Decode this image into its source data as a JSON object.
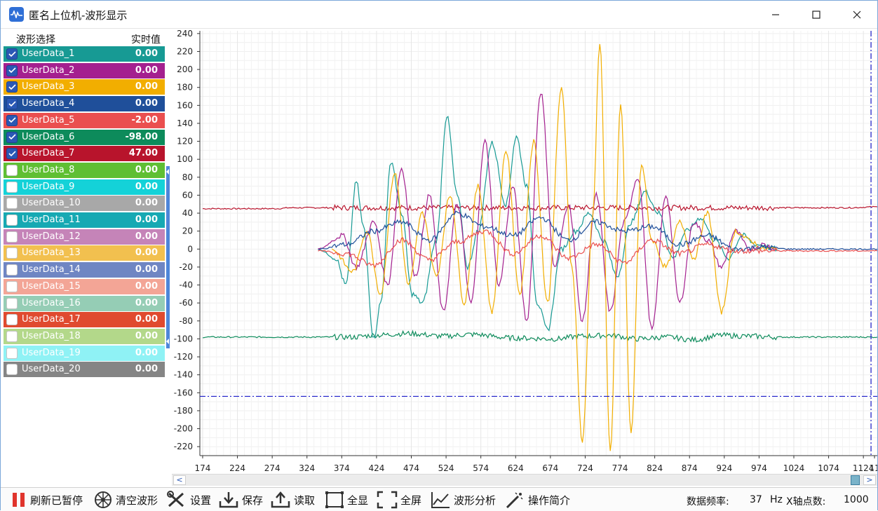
{
  "window": {
    "title": "匿名上位机-波形显示"
  },
  "panel": {
    "header_select": "波形选择",
    "header_value": "实时值",
    "channels": [
      {
        "name": "UserData_1",
        "value": "0.00",
        "checked": true,
        "color": "#179a94"
      },
      {
        "name": "UserData_2",
        "value": "0.00",
        "checked": true,
        "color": "#a4208f"
      },
      {
        "name": "UserData_3",
        "value": "0.00",
        "checked": true,
        "color": "#f2ae00"
      },
      {
        "name": "UserData_4",
        "value": "0.00",
        "checked": true,
        "color": "#1f4f9a"
      },
      {
        "name": "UserData_5",
        "value": "-2.00",
        "checked": true,
        "color": "#ea4f4f"
      },
      {
        "name": "UserData_6",
        "value": "-98.00",
        "checked": true,
        "color": "#0d8b5b"
      },
      {
        "name": "UserData_7",
        "value": "47.00",
        "checked": true,
        "color": "#b8142c"
      },
      {
        "name": "UserData_8",
        "value": "0.00",
        "checked": false,
        "color": "#5fbf33"
      },
      {
        "name": "UserData_9",
        "value": "0.00",
        "checked": false,
        "color": "#14d2d8"
      },
      {
        "name": "UserData_10",
        "value": "0.00",
        "checked": false,
        "color": "#a8a8a8"
      },
      {
        "name": "UserData_11",
        "value": "0.00",
        "checked": false,
        "color": "#16a9b3"
      },
      {
        "name": "UserData_12",
        "value": "0.00",
        "checked": false,
        "color": "#c584b8"
      },
      {
        "name": "UserData_13",
        "value": "0.00",
        "checked": false,
        "color": "#f2c04f"
      },
      {
        "name": "UserData_14",
        "value": "0.00",
        "checked": false,
        "color": "#6f86c3"
      },
      {
        "name": "UserData_15",
        "value": "0.00",
        "checked": false,
        "color": "#f3a596"
      },
      {
        "name": "UserData_16",
        "value": "0.00",
        "checked": false,
        "color": "#95cdb5"
      },
      {
        "name": "UserData_17",
        "value": "0.00",
        "checked": false,
        "color": "#e04a2f"
      },
      {
        "name": "UserData_18",
        "value": "0.00",
        "checked": false,
        "color": "#b3d88a"
      },
      {
        "name": "UserData_19",
        "value": "0.00",
        "checked": false,
        "color": "#8ff2f5"
      },
      {
        "name": "UserData_20",
        "value": "0.00",
        "checked": false,
        "color": "#858585"
      }
    ]
  },
  "toolbar": {
    "refresh_label": "刷新已暂停",
    "clear_label": "清空波形",
    "settings_label": "设置",
    "save_label": "保存",
    "load_label": "读取",
    "fit_label": "全显",
    "fullscreen_label": "全屏",
    "analysis_label": "波形分析",
    "help_label": "操作简介"
  },
  "status": {
    "freq_label": "数据频率:",
    "freq_value": "37",
    "freq_unit": "Hz",
    "xpoints_label": "X轴点数:",
    "xpoints_value": "1000"
  },
  "chart_data": {
    "type": "line",
    "x_ticks": [
      174,
      224,
      274,
      324,
      374,
      424,
      474,
      524,
      574,
      624,
      674,
      724,
      774,
      824,
      874,
      924,
      974,
      1024,
      1074,
      1124,
      "11"
    ],
    "y_ticks": [
      240,
      220,
      200,
      180,
      160,
      140,
      120,
      100,
      80,
      60,
      40,
      20,
      0,
      -20,
      -40,
      -60,
      -80,
      -100,
      -120,
      -140,
      -160,
      -180,
      -200,
      -220
    ],
    "xlim": [
      170,
      1144
    ],
    "ylim": [
      -230,
      243
    ],
    "grid": true,
    "cursor_x": 1135,
    "cursor_y": -164,
    "series": [
      {
        "color": "#b8142c",
        "start": 174,
        "end": 1144,
        "x": [
          174,
          280,
          300,
          1000,
          1100,
          1144
        ],
        "y": [
          45,
          45,
          46,
          46,
          46,
          47
        ]
      },
      {
        "color": "#0d8b5b",
        "start": 174,
        "end": 1144,
        "x": [
          174,
          390,
          420,
          470,
          520,
          560,
          620,
          680,
          720,
          760,
          800,
          840,
          880,
          920,
          960,
          1000,
          1060,
          1144
        ],
        "y": [
          -98,
          -98,
          -96,
          -94,
          -97,
          -95,
          -99,
          -100,
          -97,
          -96,
          -100,
          -98,
          -101,
          -96,
          -97,
          -98,
          -98,
          -98
        ]
      },
      {
        "color": "#179a94",
        "start": 340,
        "end": 1000,
        "x": [
          340,
          365,
          380,
          395,
          405,
          420,
          430,
          445,
          460,
          475,
          490,
          510,
          525,
          540,
          555,
          570,
          590,
          610,
          625,
          640,
          655,
          670,
          690,
          710,
          730,
          750,
          770,
          790,
          810,
          830,
          850,
          870,
          890,
          910,
          930,
          950,
          970,
          1000
        ],
        "y": [
          0,
          -10,
          -40,
          75,
          25,
          -100,
          -60,
          98,
          40,
          -50,
          -60,
          10,
          148,
          60,
          -20,
          20,
          118,
          50,
          125,
          70,
          -60,
          -90,
          0,
          20,
          40,
          10,
          -30,
          30,
          64,
          40,
          -10,
          20,
          35,
          10,
          -10,
          15,
          5,
          0
        ]
      },
      {
        "color": "#a4208f",
        "start": 340,
        "end": 1000,
        "x": [
          340,
          375,
          395,
          420,
          440,
          460,
          480,
          500,
          520,
          540,
          560,
          580,
          600,
          620,
          640,
          660,
          680,
          700,
          720,
          740,
          760,
          780,
          800,
          820,
          840,
          860,
          880,
          900,
          920,
          940,
          960,
          980,
          1000
        ],
        "y": [
          0,
          15,
          -20,
          30,
          -40,
          90,
          -30,
          60,
          -70,
          50,
          -60,
          120,
          -40,
          70,
          -80,
          175,
          -20,
          50,
          -80,
          60,
          -70,
          30,
          80,
          -90,
          60,
          -60,
          30,
          10,
          -20,
          20,
          0,
          5,
          0
        ]
      },
      {
        "color": "#f2ae00",
        "start": 360,
        "end": 1000,
        "x": [
          360,
          390,
          410,
          430,
          450,
          470,
          490,
          510,
          530,
          550,
          570,
          590,
          610,
          630,
          650,
          670,
          690,
          705,
          720,
          735,
          745,
          760,
          775,
          790,
          805,
          820,
          840,
          860,
          880,
          900,
          920,
          940,
          960,
          980,
          1000
        ],
        "y": [
          0,
          -25,
          20,
          -50,
          85,
          -40,
          40,
          -30,
          60,
          -60,
          70,
          -70,
          110,
          -50,
          120,
          -60,
          180,
          -20,
          -215,
          40,
          230,
          -225,
          160,
          -205,
          95,
          10,
          -20,
          30,
          -10,
          40,
          -70,
          20,
          10,
          0,
          0
        ]
      },
      {
        "color": "#1f4f9a",
        "start": 340,
        "end": 1144,
        "x": [
          340,
          380,
          420,
          460,
          500,
          540,
          580,
          620,
          660,
          700,
          740,
          780,
          820,
          860,
          900,
          940,
          980,
          1020,
          1144
        ],
        "y": [
          0,
          5,
          20,
          30,
          10,
          40,
          25,
          15,
          35,
          10,
          30,
          20,
          25,
          5,
          15,
          0,
          2,
          0,
          0
        ]
      },
      {
        "color": "#ea4f4f",
        "start": 340,
        "end": 1144,
        "x": [
          340,
          380,
          420,
          460,
          500,
          540,
          580,
          620,
          660,
          700,
          740,
          780,
          820,
          860,
          900,
          940,
          980,
          1020,
          1144
        ],
        "y": [
          -2,
          -5,
          -18,
          10,
          -12,
          8,
          20,
          -5,
          15,
          -10,
          5,
          -15,
          10,
          -5,
          5,
          -2,
          -2,
          -2,
          -2
        ]
      }
    ]
  }
}
